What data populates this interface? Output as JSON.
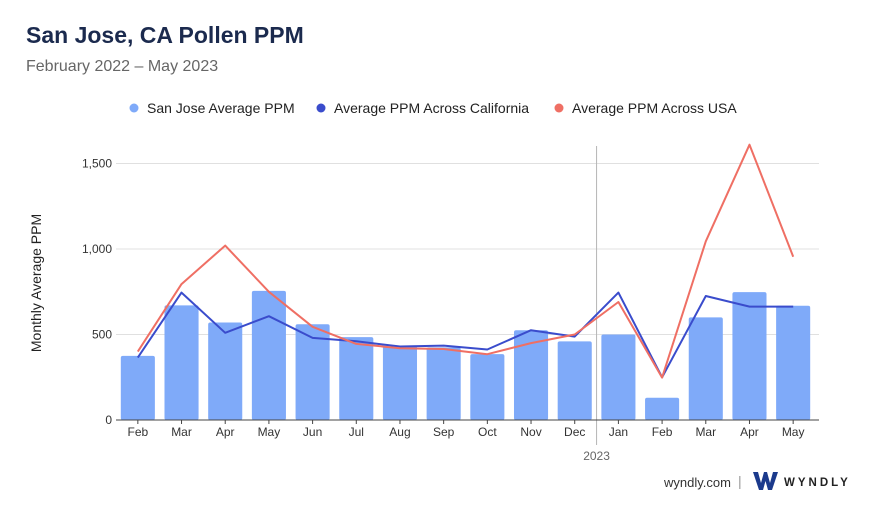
{
  "header": {
    "title": "San Jose, CA Pollen PPM",
    "subtitle": "February 2022 – May 2023"
  },
  "footer": {
    "site": "wyndly.com",
    "separator": "|",
    "brand": "WYNDLY"
  },
  "colors": {
    "bars": "#7faaf9",
    "california": "#3a4ccc",
    "usa": "#ef6f64",
    "grid": "#e0e0e0",
    "axis": "#444444",
    "logo": "#1b3a8c"
  },
  "chart_data": {
    "type": "bar",
    "categories": [
      "Feb",
      "Mar",
      "Apr",
      "May",
      "Jun",
      "Jul",
      "Aug",
      "Sep",
      "Oct",
      "Nov",
      "Dec",
      "Jan",
      "Feb",
      "Mar",
      "Apr",
      "May"
    ],
    "year_marker": {
      "label": "2023",
      "before_category_index": 11
    },
    "ylabel": "Monthly Average PPM",
    "ylim": [
      0,
      1650
    ],
    "yticks": [
      0,
      500,
      1000,
      1500
    ],
    "ytick_labels": [
      "0",
      "500",
      "1,000",
      "1,500"
    ],
    "grid": true,
    "legend_position": "top",
    "series": [
      {
        "name": "San Jose Average PPM",
        "type": "bar",
        "values": [
          375,
          670,
          570,
          755,
          560,
          485,
          435,
          425,
          385,
          525,
          460,
          500,
          130,
          600,
          748,
          668
        ]
      },
      {
        "name": "Average PPM Across California",
        "type": "line",
        "values": [
          365,
          745,
          510,
          607,
          480,
          460,
          430,
          435,
          412,
          525,
          488,
          745,
          250,
          725,
          663,
          663
        ]
      },
      {
        "name": "Average PPM Across USA",
        "type": "line",
        "values": [
          400,
          795,
          1020,
          750,
          545,
          445,
          420,
          415,
          385,
          450,
          500,
          690,
          248,
          1045,
          1610,
          955
        ]
      }
    ]
  }
}
